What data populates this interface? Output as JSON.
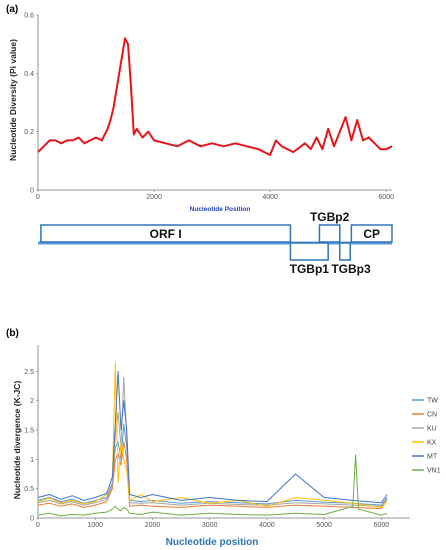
{
  "chart_data": [
    {
      "type": "line",
      "panel_label": "(a)",
      "xlabel": "Nucleotide Position",
      "ylabel": "Nucleotide Diversity (Pi value)",
      "xlim": [
        0,
        6100
      ],
      "ylim": [
        0,
        0.6
      ],
      "x_ticks": [
        "0",
        "2000",
        "4000",
        "6000"
      ],
      "y_ticks": [
        "0",
        "0.2",
        "0.4",
        "0.6"
      ],
      "grid": false,
      "colors": {
        "line": "#e8141c",
        "xlabel": "#1f3fbf"
      },
      "series": [
        {
          "x": [
            0,
            100,
            200,
            300,
            400,
            500,
            600,
            700,
            800,
            900,
            1000,
            1100,
            1200,
            1250,
            1300,
            1350,
            1400,
            1450,
            1500,
            1550,
            1600,
            1650,
            1700,
            1800,
            1900,
            2000,
            2200,
            2400,
            2600,
            2800,
            3000,
            3200,
            3400,
            3600,
            3800,
            4000,
            4100,
            4200,
            4400,
            4600,
            4700,
            4800,
            4900,
            5000,
            5100,
            5200,
            5300,
            5400,
            5500,
            5600,
            5700,
            5800,
            5900,
            6000,
            6100
          ],
          "values": [
            0.13,
            0.15,
            0.17,
            0.17,
            0.16,
            0.17,
            0.17,
            0.18,
            0.16,
            0.17,
            0.18,
            0.17,
            0.21,
            0.24,
            0.28,
            0.34,
            0.4,
            0.46,
            0.52,
            0.5,
            0.36,
            0.19,
            0.21,
            0.18,
            0.2,
            0.17,
            0.16,
            0.15,
            0.17,
            0.15,
            0.16,
            0.15,
            0.16,
            0.15,
            0.14,
            0.12,
            0.17,
            0.15,
            0.13,
            0.16,
            0.14,
            0.18,
            0.14,
            0.21,
            0.15,
            0.2,
            0.25,
            0.17,
            0.24,
            0.17,
            0.18,
            0.16,
            0.14,
            0.14,
            0.15
          ]
        }
      ]
    },
    {
      "type": "line",
      "panel_label": "(b)",
      "xlabel": "Nucleotide position",
      "ylabel": "Nucleotide divergence (K-JC)",
      "xlim": [
        0,
        6500
      ],
      "ylim": [
        0,
        2.95
      ],
      "x_ticks": [
        "0",
        "1000",
        "2000",
        "3000",
        "4000",
        "5000",
        "6000"
      ],
      "y_ticks": [
        "0",
        "0.5",
        "1",
        "1.5",
        "2",
        "2.5"
      ],
      "grid": false,
      "legend_placement": "right",
      "colors": {
        "xlabel": "#2e75b6"
      },
      "series": [
        {
          "name": "TW",
          "color": "#5b9bd5",
          "x": [
            0,
            200,
            400,
            600,
            800,
            1000,
            1200,
            1300,
            1350,
            1400,
            1450,
            1500,
            1550,
            1600,
            1800,
            2000,
            2500,
            3000,
            3500,
            4000,
            4500,
            5000,
            5500,
            6000,
            6100
          ],
          "values": [
            0.3,
            0.35,
            0.28,
            0.32,
            0.25,
            0.3,
            0.35,
            0.6,
            1.2,
            1.3,
            1.0,
            1.6,
            1.2,
            0.3,
            0.28,
            0.3,
            0.25,
            0.28,
            0.26,
            0.24,
            0.3,
            0.27,
            0.25,
            0.22,
            0.35
          ]
        },
        {
          "name": "CN",
          "color": "#ed7d31",
          "x": [
            0,
            200,
            400,
            600,
            800,
            1000,
            1200,
            1300,
            1350,
            1400,
            1450,
            1500,
            1550,
            1600,
            1800,
            2000,
            2500,
            3000,
            3500,
            4000,
            4500,
            5000,
            5500,
            6000,
            6100
          ],
          "values": [
            0.22,
            0.25,
            0.2,
            0.24,
            0.18,
            0.22,
            0.28,
            0.5,
            1.0,
            1.1,
            0.9,
            1.3,
            1.0,
            0.2,
            0.22,
            0.2,
            0.18,
            0.22,
            0.2,
            0.18,
            0.22,
            0.2,
            0.18,
            0.16,
            0.3
          ]
        },
        {
          "name": "KU",
          "color": "#a5a5a5",
          "x": [
            0,
            200,
            400,
            600,
            800,
            1000,
            1200,
            1300,
            1350,
            1400,
            1450,
            1500,
            1550,
            1600,
            1800,
            2000,
            2500,
            3000,
            3500,
            4000,
            4500,
            5000,
            5500,
            6000,
            6100
          ],
          "values": [
            0.26,
            0.3,
            0.24,
            0.28,
            0.22,
            0.26,
            0.32,
            0.55,
            1.4,
            1.8,
            1.2,
            2.4,
            1.4,
            0.26,
            0.25,
            0.26,
            0.22,
            0.25,
            0.23,
            0.22,
            0.26,
            0.24,
            0.22,
            0.2,
            0.32
          ]
        },
        {
          "name": "KX",
          "color": "#ffc000",
          "x": [
            0,
            200,
            400,
            600,
            800,
            1000,
            1200,
            1300,
            1350,
            1400,
            1450,
            1500,
            1550,
            1600,
            1800,
            2000,
            2500,
            3000,
            3500,
            4000,
            4500,
            5000,
            5500,
            6000,
            6100
          ],
          "values": [
            0.28,
            0.34,
            0.26,
            0.3,
            0.24,
            0.28,
            0.4,
            0.7,
            2.65,
            0.6,
            1.3,
            1.0,
            0.8,
            0.3,
            0.4,
            0.28,
            0.35,
            0.25,
            0.3,
            0.2,
            0.35,
            0.3,
            0.25,
            0.18,
            0.3
          ]
        },
        {
          "name": "MT",
          "color": "#4472c4",
          "x": [
            0,
            200,
            400,
            600,
            800,
            1000,
            1200,
            1300,
            1350,
            1400,
            1450,
            1500,
            1550,
            1600,
            1800,
            2000,
            2500,
            3000,
            3500,
            4000,
            4500,
            5000,
            5500,
            6000,
            6100
          ],
          "values": [
            0.35,
            0.4,
            0.32,
            0.38,
            0.3,
            0.35,
            0.42,
            0.7,
            1.6,
            2.5,
            1.5,
            2.0,
            1.5,
            0.4,
            0.35,
            0.4,
            0.3,
            0.35,
            0.3,
            0.28,
            0.75,
            0.35,
            0.3,
            0.26,
            0.4
          ]
        },
        {
          "name": "VN1",
          "color": "#70ad47",
          "x": [
            0,
            200,
            400,
            600,
            800,
            1000,
            1200,
            1300,
            1350,
            1400,
            1450,
            1500,
            1550,
            1600,
            1800,
            2000,
            2500,
            3000,
            3500,
            4000,
            4500,
            5000,
            5500,
            5550,
            5600,
            6000,
            6100
          ],
          "values": [
            0.05,
            0.08,
            0.04,
            0.06,
            0.05,
            0.08,
            0.1,
            0.15,
            0.2,
            0.15,
            0.12,
            0.18,
            0.15,
            0.08,
            0.06,
            0.1,
            0.05,
            0.08,
            0.06,
            0.05,
            0.08,
            0.06,
            0.2,
            1.08,
            0.15,
            0.05,
            0.08
          ]
        }
      ]
    }
  ],
  "genome_map": {
    "genes": [
      {
        "label": "ORF I",
        "start": 50,
        "end": 4350,
        "row": "top"
      },
      {
        "label": "TGBp1",
        "start": 4350,
        "end": 5000,
        "row": "bottom"
      },
      {
        "label": "TGBp2",
        "start": 4850,
        "end": 5200,
        "row": "top"
      },
      {
        "label": "TGBp3",
        "start": 5200,
        "end": 5380,
        "row": "bottom"
      },
      {
        "label": "CP",
        "start": 5400,
        "end": 6100,
        "row": "top"
      }
    ],
    "colors": {
      "box": "#2e75b6",
      "axis_line": "#5b9bd5"
    }
  }
}
